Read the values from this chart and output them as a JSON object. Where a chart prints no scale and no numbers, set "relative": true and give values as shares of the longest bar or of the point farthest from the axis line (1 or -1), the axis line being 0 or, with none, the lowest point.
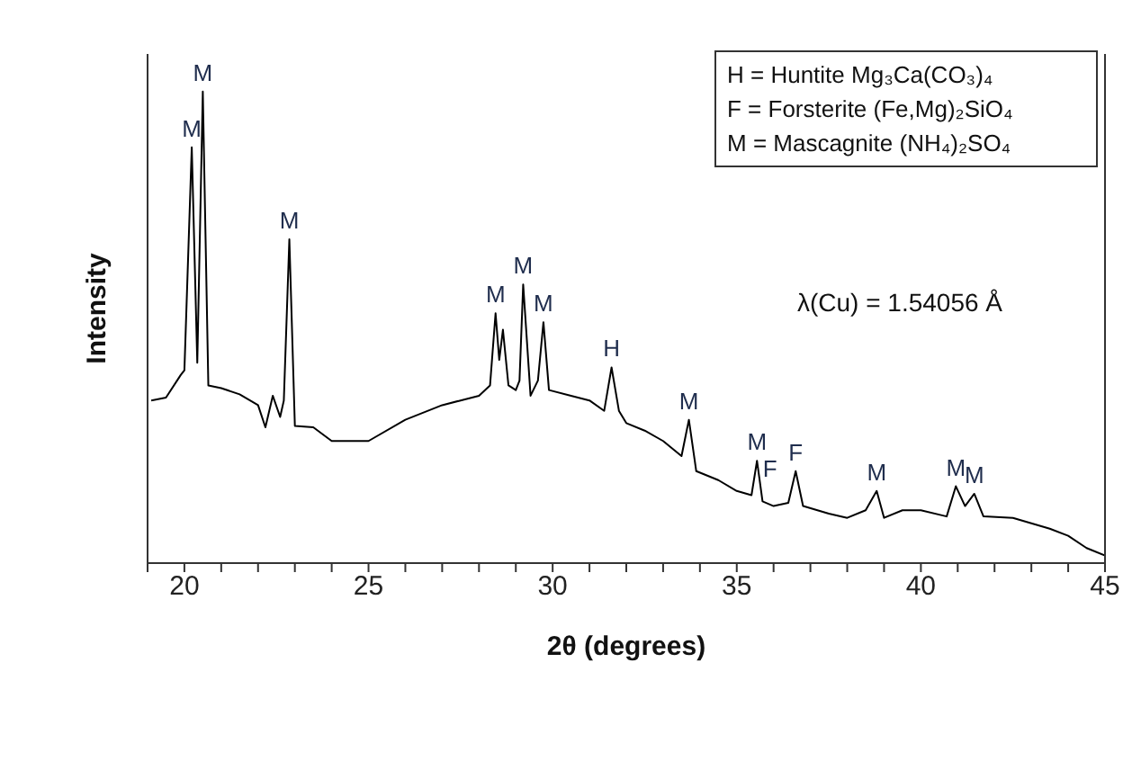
{
  "chart_data": {
    "type": "line",
    "relative": true,
    "xlabel": "2θ (degrees)",
    "ylabel": "Intensity",
    "xlim": [
      19,
      45
    ],
    "xticks": [
      {
        "value": 19,
        "label": null
      },
      20,
      {
        "value": 21,
        "label": null
      },
      {
        "value": 22,
        "label": null
      },
      {
        "value": 23,
        "label": null
      },
      {
        "value": 24,
        "label": null
      },
      25,
      {
        "value": 26,
        "label": null
      },
      {
        "value": 27,
        "label": null
      },
      {
        "value": 28,
        "label": null
      },
      {
        "value": 29,
        "label": null
      },
      30,
      {
        "value": 31,
        "label": null
      },
      {
        "value": 32,
        "label": null
      },
      {
        "value": 33,
        "label": null
      },
      {
        "value": 34,
        "label": null
      },
      35,
      {
        "value": 36,
        "label": null
      },
      {
        "value": 37,
        "label": null
      },
      {
        "value": 38,
        "label": null
      },
      {
        "value": 39,
        "label": null
      },
      40,
      {
        "value": 41,
        "label": null
      },
      {
        "value": 42,
        "label": null
      },
      {
        "value": 43,
        "label": null
      },
      {
        "value": 44,
        "label": null
      },
      45
    ],
    "grid": false,
    "legend": false,
    "marker": "none",
    "line_style": "solid",
    "series": [
      {
        "color": "#000000",
        "x": [
          19.1,
          19.5,
          19.9,
          20.0,
          20.2,
          20.35,
          20.5,
          20.65,
          21,
          21.5,
          22,
          22.2,
          22.4,
          22.6,
          22.7,
          22.85,
          23.0,
          23.5,
          24,
          25,
          26,
          27,
          27.5,
          28.0,
          28.3,
          28.45,
          28.55,
          28.65,
          28.8,
          29.0,
          29.1,
          29.2,
          29.4,
          29.6,
          29.75,
          29.9,
          30.5,
          31,
          31.4,
          31.6,
          31.8,
          32,
          32.5,
          33,
          33.5,
          33.7,
          33.9,
          34.5,
          35,
          35.4,
          35.55,
          35.7,
          36,
          36.4,
          36.6,
          36.8,
          37.5,
          38,
          38.5,
          38.8,
          39.0,
          39.5,
          40,
          40.7,
          40.95,
          41.2,
          41.45,
          41.7,
          42.5,
          43.5,
          44,
          44.5,
          45
        ],
        "values": [
          0.345,
          0.351,
          0.399,
          0.409,
          0.882,
          0.425,
          1,
          0.377,
          0.371,
          0.358,
          0.335,
          0.288,
          0.355,
          0.31,
          0.345,
          0.687,
          0.291,
          0.288,
          0.259,
          0.259,
          0.304,
          0.335,
          0.345,
          0.355,
          0.377,
          0.53,
          0.431,
          0.495,
          0.377,
          0.367,
          0.387,
          0.591,
          0.355,
          0.387,
          0.511,
          0.367,
          0.355,
          0.345,
          0.323,
          0.415,
          0.323,
          0.297,
          0.281,
          0.259,
          0.227,
          0.304,
          0.195,
          0.176,
          0.153,
          0.144,
          0.217,
          0.131,
          0.121,
          0.128,
          0.195,
          0.121,
          0.105,
          0.096,
          0.112,
          0.153,
          0.096,
          0.112,
          0.112,
          0.099,
          0.163,
          0.121,
          0.147,
          0.099,
          0.096,
          0.073,
          0.058,
          0.032,
          0.016
        ]
      }
    ],
    "annotations": [
      "H = Huntite Mg₃Ca(CO₃)₄",
      "F = Forsterite (Fe,Mg)₂SiO₄",
      "M = Mascagnite (NH₄)₂SO₄",
      "λ(Cu) = 1.54056 Å",
      {
        "text": "M",
        "x": 20.2,
        "y": 0.882
      },
      {
        "text": "M",
        "x": 20.5,
        "y": 1
      },
      {
        "text": "M",
        "x": 22.85,
        "y": 0.687
      },
      {
        "text": "M",
        "x": 28.45,
        "y": 0.53
      },
      {
        "text": "M",
        "x": 29.2,
        "y": 0.591
      },
      {
        "text": "M",
        "x": 29.75,
        "y": 0.511
      },
      {
        "text": "H",
        "x": 31.6,
        "y": 0.415
      },
      {
        "text": "M",
        "x": 33.7,
        "y": 0.304
      },
      {
        "text": "M",
        "x": 35.55,
        "y": 0.217
      },
      {
        "text": "F",
        "x": 35.9,
        "y": 0.16
      },
      {
        "text": "F",
        "x": 36.6,
        "y": 0.195
      },
      {
        "text": "M",
        "x": 38.8,
        "y": 0.153
      },
      {
        "text": "M",
        "x": 40.95,
        "y": 0.163
      },
      {
        "text": "M",
        "x": 41.45,
        "y": 0.147
      }
    ]
  }
}
